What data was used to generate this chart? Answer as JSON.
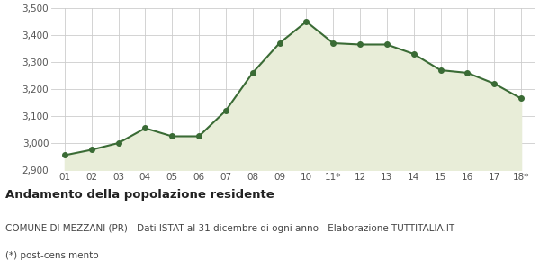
{
  "x_labels": [
    "01",
    "02",
    "03",
    "04",
    "05",
    "06",
    "07",
    "08",
    "09",
    "10",
    "11*",
    "12",
    "13",
    "14",
    "15",
    "16",
    "17",
    "18*"
  ],
  "y_values": [
    2955,
    2975,
    3000,
    3055,
    3025,
    3025,
    3120,
    3260,
    3370,
    3450,
    3370,
    3365,
    3365,
    3330,
    3270,
    3260,
    3220,
    3165
  ],
  "line_color": "#3a6b35",
  "fill_color": "#e8edd8",
  "marker_color": "#3a6b35",
  "background_color": "#ffffff",
  "grid_color": "#cccccc",
  "ylim": [
    2900,
    3500
  ],
  "yticks": [
    2900,
    3000,
    3100,
    3200,
    3300,
    3400,
    3500
  ],
  "ytick_labels": [
    "2,900",
    "3,000",
    "3,100",
    "3,200",
    "3,300",
    "3,400",
    "3,500"
  ],
  "title_line1": "Andamento della popolazione residente",
  "title_line2": "COMUNE DI MEZZANI (PR) - Dati ISTAT al 31 dicembre di ogni anno - Elaborazione TUTTITALIA.IT",
  "title_line3": "(*) post-censimento",
  "title_fontsize": 9.5,
  "subtitle_fontsize": 7.5,
  "tick_fontsize": 7.5,
  "line_width": 1.5,
  "marker_size": 4
}
